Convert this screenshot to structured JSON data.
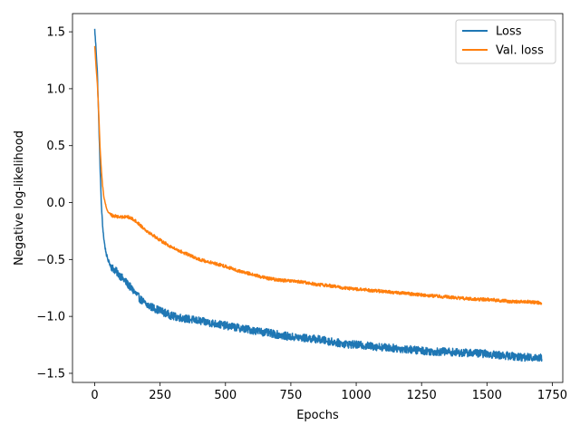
{
  "chart_data": {
    "type": "line",
    "title": "",
    "xlabel": "Epochs",
    "ylabel": "Negative log-likelihood",
    "xlim": [
      -85,
      1790
    ],
    "ylim": [
      -1.58,
      1.66
    ],
    "xticks": [
      0,
      250,
      500,
      750,
      1000,
      1250,
      1500,
      1750
    ],
    "xtick_labels": [
      "0",
      "250",
      "500",
      "750",
      "1000",
      "1250",
      "1500",
      "1750"
    ],
    "yticks": [
      -1.5,
      -1.0,
      -0.5,
      0.0,
      0.5,
      1.0,
      1.5
    ],
    "ytick_labels": [
      "−1.5",
      "−1.0",
      "−0.5",
      "0.0",
      "0.5",
      "1.0",
      "1.5"
    ],
    "grid": false,
    "legend_position": "top-right",
    "series": [
      {
        "name": "Loss",
        "color": "#1f77b4",
        "x": [
          0,
          5,
          10,
          15,
          20,
          25,
          30,
          35,
          40,
          45,
          50,
          60,
          70,
          80,
          100,
          120,
          150,
          175,
          200,
          250,
          300,
          350,
          400,
          450,
          500,
          550,
          600,
          650,
          700,
          750,
          800,
          850,
          900,
          950,
          1000,
          1050,
          1100,
          1150,
          1200,
          1250,
          1300,
          1350,
          1400,
          1450,
          1500,
          1550,
          1600,
          1650,
          1700,
          1710
        ],
        "y": [
          1.52,
          1.35,
          1.15,
          0.75,
          0.35,
          0.0,
          -0.2,
          -0.32,
          -0.4,
          -0.46,
          -0.5,
          -0.55,
          -0.58,
          -0.6,
          -0.65,
          -0.7,
          -0.78,
          -0.85,
          -0.9,
          -0.95,
          -1.0,
          -1.02,
          -1.04,
          -1.06,
          -1.08,
          -1.1,
          -1.12,
          -1.14,
          -1.16,
          -1.18,
          -1.19,
          -1.2,
          -1.22,
          -1.24,
          -1.25,
          -1.26,
          -1.27,
          -1.28,
          -1.29,
          -1.3,
          -1.31,
          -1.31,
          -1.32,
          -1.32,
          -1.33,
          -1.34,
          -1.35,
          -1.36,
          -1.36,
          -1.36
        ]
      },
      {
        "name": "Val. loss",
        "color": "#ff7f0e",
        "x": [
          0,
          5,
          10,
          15,
          20,
          25,
          30,
          35,
          40,
          45,
          50,
          60,
          70,
          80,
          100,
          120,
          150,
          175,
          200,
          250,
          300,
          350,
          400,
          450,
          500,
          550,
          600,
          650,
          700,
          750,
          800,
          850,
          900,
          950,
          1000,
          1050,
          1100,
          1150,
          1200,
          1250,
          1300,
          1350,
          1400,
          1450,
          1500,
          1550,
          1600,
          1650,
          1700,
          1710
        ],
        "y": [
          1.38,
          1.2,
          1.05,
          0.8,
          0.5,
          0.3,
          0.15,
          0.05,
          0.0,
          -0.05,
          -0.08,
          -0.1,
          -0.12,
          -0.12,
          -0.13,
          -0.12,
          -0.15,
          -0.2,
          -0.25,
          -0.33,
          -0.4,
          -0.45,
          -0.5,
          -0.53,
          -0.56,
          -0.6,
          -0.63,
          -0.66,
          -0.68,
          -0.69,
          -0.7,
          -0.72,
          -0.73,
          -0.75,
          -0.76,
          -0.77,
          -0.78,
          -0.79,
          -0.8,
          -0.81,
          -0.82,
          -0.83,
          -0.84,
          -0.85,
          -0.85,
          -0.86,
          -0.87,
          -0.87,
          -0.88,
          -0.89
        ]
      }
    ]
  }
}
